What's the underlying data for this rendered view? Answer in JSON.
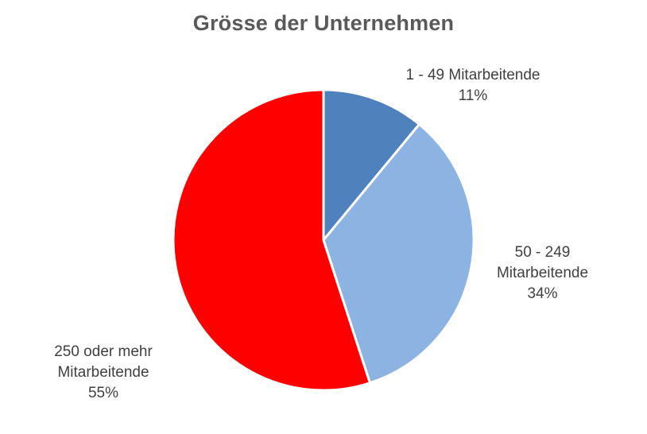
{
  "chart_data": {
    "type": "pie",
    "title": "Grösse der Unternehmen",
    "start_angle_deg": 0,
    "direction": "clockwise",
    "slices": [
      {
        "name": "1 - 49 Mitarbeitende",
        "value": 11,
        "label_lines": [
          "1 - 49 Mitarbeitende",
          "11%"
        ],
        "color": "#4F81BD"
      },
      {
        "name": "50 - 249 Mitarbeitende",
        "value": 34,
        "label_lines": [
          "50 - 249",
          "Mitarbeitende",
          "34%"
        ],
        "color": "#8DB3E2"
      },
      {
        "name": "250 oder mehr Mitarbeitende",
        "value": 55,
        "label_lines": [
          "250  oder mehr",
          "Mitarbeitende",
          "55%"
        ],
        "color": "#FF0000"
      }
    ],
    "legend": "none",
    "data_labels": "outside"
  }
}
